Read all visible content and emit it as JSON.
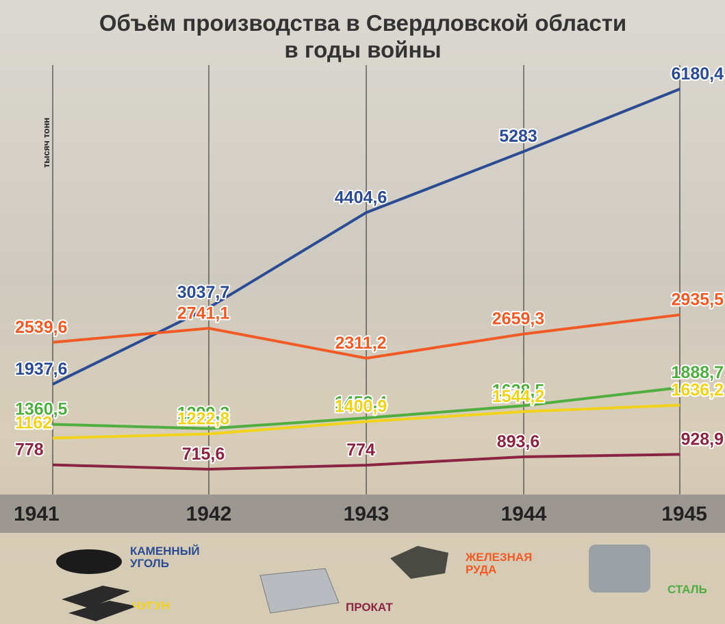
{
  "chart_data": {
    "type": "line",
    "title": "Объём производства в Свердловской области",
    "subtitle": "в годы войны",
    "y_label": "тысяч тонн",
    "categories": [
      "1941",
      "1942",
      "1943",
      "1944",
      "1945"
    ],
    "series": [
      {
        "name": "КАМЕННЫЙ УГОЛЬ",
        "color": "#2b4b92",
        "values": [
          1937.6,
          3037.7,
          4404.6,
          5283,
          6180.4
        ],
        "value_labels": [
          "1937,6",
          "3037,7",
          "4404,6",
          "5283",
          "6180,4"
        ]
      },
      {
        "name": "ЖЕЛЕЗНАЯ РУДА",
        "color": "#f15a24",
        "values": [
          2539.6,
          2741.1,
          2311.2,
          2659.3,
          2935.5
        ],
        "value_labels": [
          "2539,6",
          "2741,1",
          "2311,2",
          "2659,3",
          "2935,5"
        ]
      },
      {
        "name": "СТАЛЬ",
        "color": "#4fae3f",
        "values": [
          1360.5,
          1299.3,
          1452.4,
          1628.5,
          1888.7
        ],
        "value_labels": [
          "1360,5",
          "1299,3",
          "1452,4",
          "1628,5",
          "1888,7"
        ]
      },
      {
        "name": "ЧУГУН",
        "color": "#f2d31b",
        "values": [
          1162,
          1222.8,
          1400.9,
          1544.2,
          1636.2
        ],
        "value_labels": [
          "1162",
          "1222,8",
          "1400,9",
          "1544,2",
          "1636,2"
        ]
      },
      {
        "name": "ПРОКАТ",
        "color": "#8a2442",
        "values": [
          778,
          715.6,
          774,
          893.6,
          928.9
        ],
        "value_labels": [
          "778",
          "715,6",
          "774",
          "893,6",
          "928,9"
        ]
      }
    ]
  }
}
